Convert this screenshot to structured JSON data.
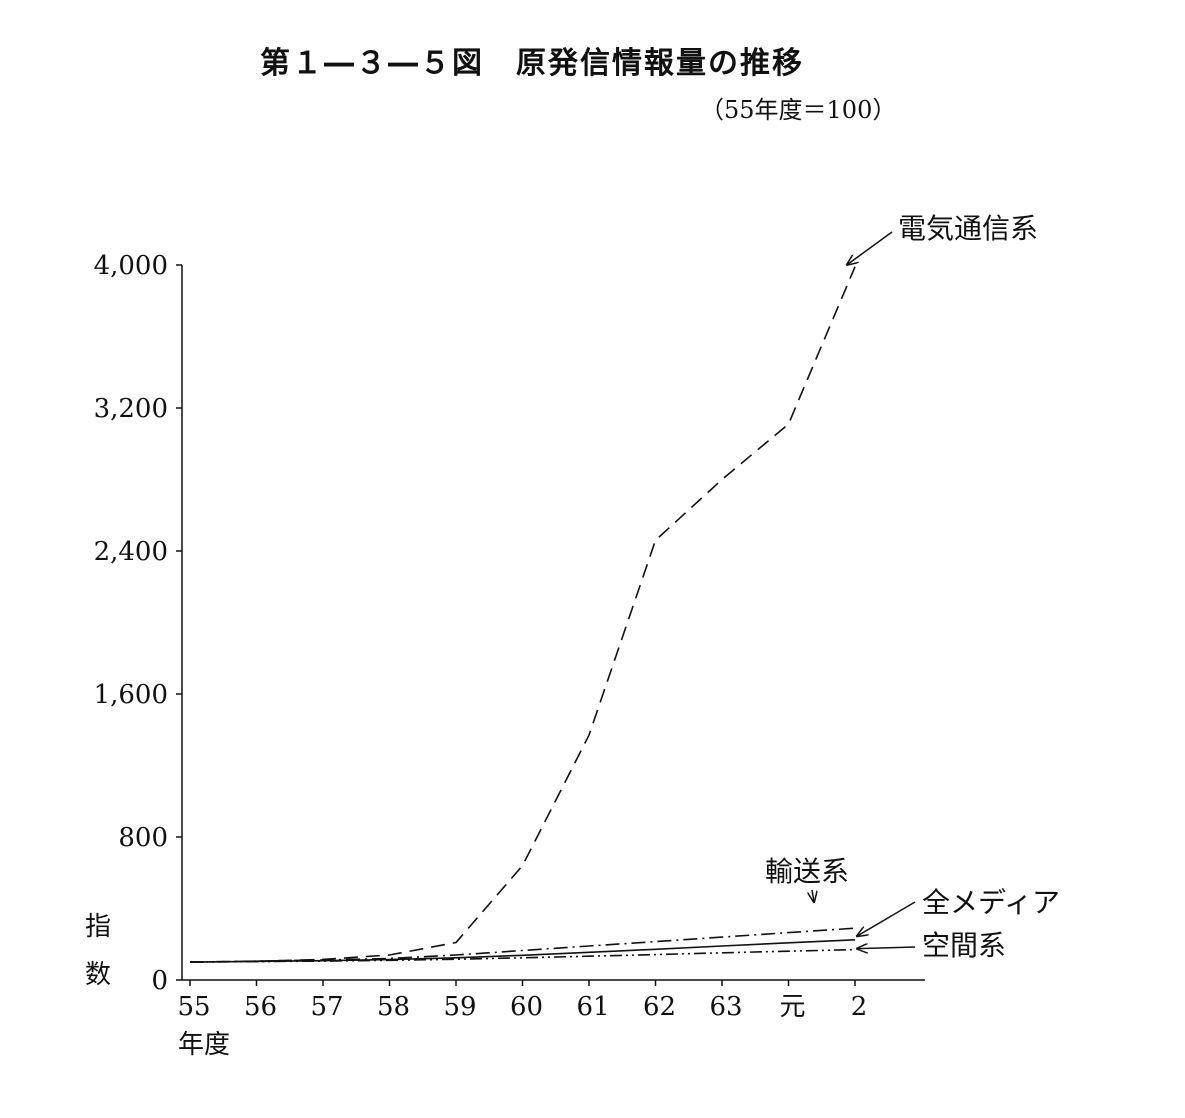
{
  "title": "第１―３―５図　原発信情報量の推移",
  "subtitle": "（55年度＝100）",
  "chart_data": {
    "type": "line",
    "categories": [
      "55",
      "56",
      "57",
      "58",
      "59",
      "60",
      "61",
      "62",
      "63",
      "元",
      "2"
    ],
    "xlabel": "年度",
    "ylabel": "指数",
    "ylim": [
      0,
      4000
    ],
    "yticks": [
      "0",
      "800",
      "1,600",
      "2,400",
      "3,200",
      "4,000"
    ],
    "grid": false,
    "series": [
      {
        "name": "電気通信系",
        "style": "dashed",
        "values": [
          100,
          105,
          115,
          140,
          210,
          640,
          1370,
          2460,
          2800,
          3110,
          3990
        ]
      },
      {
        "name": "輸送系",
        "style": "dashdot",
        "values": [
          100,
          106,
          112,
          120,
          140,
          165,
          190,
          215,
          240,
          265,
          290
        ]
      },
      {
        "name": "全メディア",
        "style": "solid",
        "values": [
          100,
          104,
          108,
          114,
          124,
          138,
          155,
          172,
          190,
          208,
          225
        ]
      },
      {
        "name": "空間系",
        "style": "dashdotdot",
        "values": [
          100,
          103,
          106,
          110,
          116,
          124,
          133,
          142,
          152,
          161,
          170
        ]
      }
    ]
  }
}
